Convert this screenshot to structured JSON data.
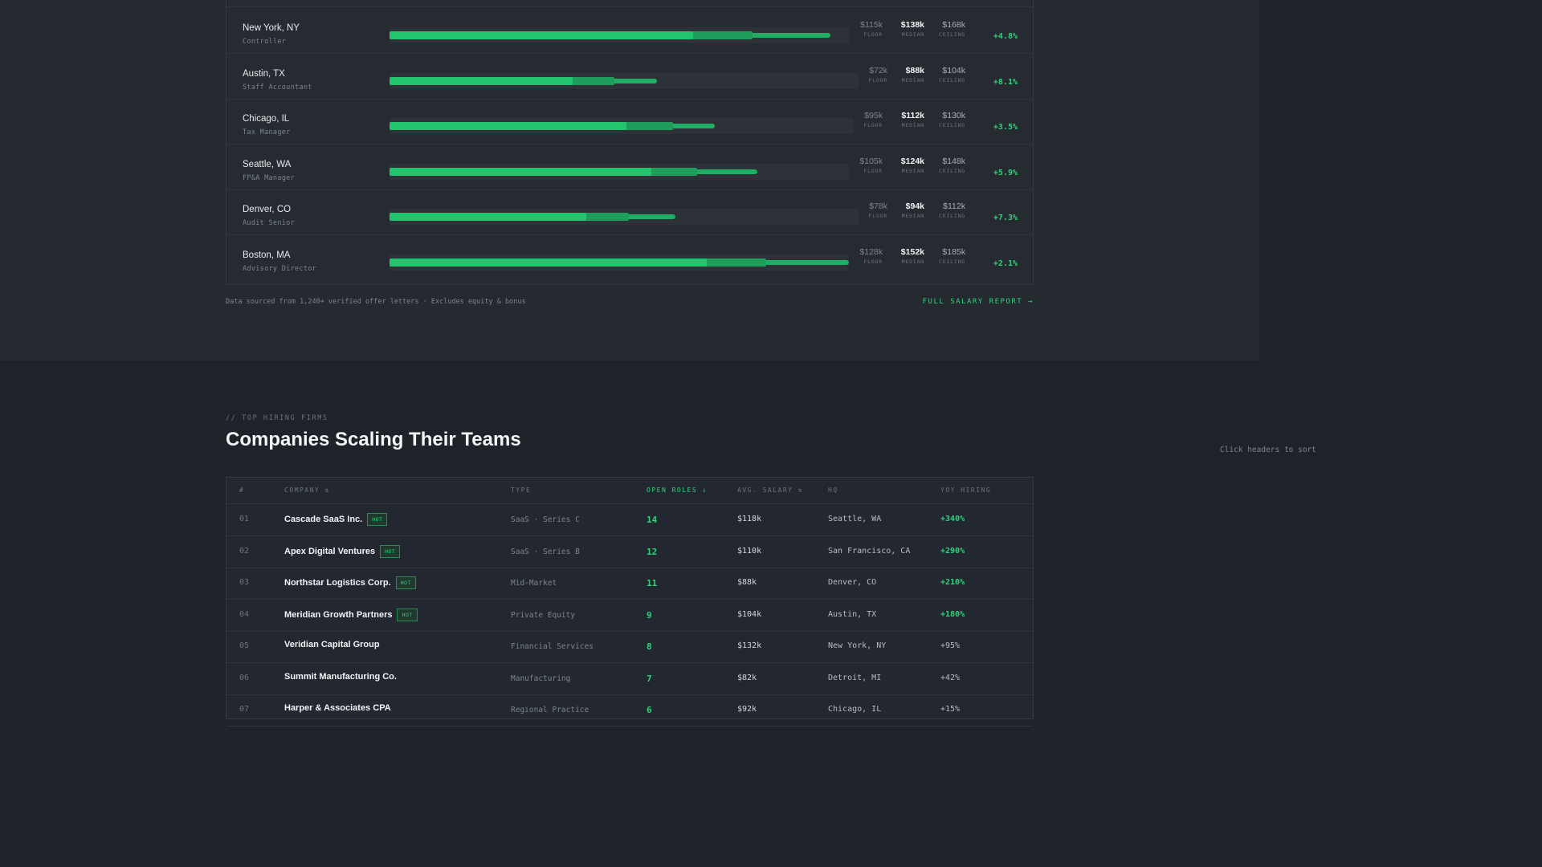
{
  "salaries": [
    {
      "city": "New York, NY",
      "role": "Controller",
      "floor": "$115k",
      "median": "$138k",
      "ceiling": "$168k",
      "change": "+4.8%",
      "floor_pct": 0.66,
      "median_pct": 0.79,
      "ceiling_pct": 0.96
    },
    {
      "city": "Austin, TX",
      "role": "Staff Accountant",
      "floor": "$72k",
      "median": "$88k",
      "ceiling": "$104k",
      "change": "+8.1%",
      "floor_pct": 0.39,
      "median_pct": 0.48,
      "ceiling_pct": 0.57
    },
    {
      "city": "Chicago, IL",
      "role": "Tax Manager",
      "floor": "$95k",
      "median": "$112k",
      "ceiling": "$130k",
      "change": "+3.5%",
      "floor_pct": 0.51,
      "median_pct": 0.61,
      "ceiling_pct": 0.7
    },
    {
      "city": "Seattle, WA",
      "role": "FP&A Manager",
      "floor": "$105k",
      "median": "$124k",
      "ceiling": "$148k",
      "change": "+5.9%",
      "floor_pct": 0.57,
      "median_pct": 0.67,
      "ceiling_pct": 0.8
    },
    {
      "city": "Denver, CO",
      "role": "Audit Senior",
      "floor": "$78k",
      "median": "$94k",
      "ceiling": "$112k",
      "change": "+7.3%",
      "floor_pct": 0.42,
      "median_pct": 0.51,
      "ceiling_pct": 0.61
    },
    {
      "city": "Boston, MA",
      "role": "Advisory Director",
      "floor": "$128k",
      "median": "$152k",
      "ceiling": "$185k",
      "change": "+2.1%",
      "floor_pct": 0.69,
      "median_pct": 0.82,
      "ceiling_pct": 1.0
    }
  ],
  "labels": {
    "floor": "FLOOR",
    "median": "MEDIAN",
    "ceiling": "CEILING"
  },
  "footnote": "Data sourced from 1,240+ verified offer letters · Excludes equity & bonus",
  "report_link": "FULL SALARY REPORT →",
  "firms": {
    "eyebrow": "// TOP HIRING FIRMS",
    "title": "Companies Scaling Their Teams",
    "sort_hint": "Click headers to sort",
    "headers": {
      "rank": "#",
      "company": "COMPANY ⇅",
      "type": "TYPE",
      "roles": "OPEN ROLES ↓",
      "salary": "AVG. SALARY ⇅",
      "hq": "HQ",
      "yoy": "YOY HIRING"
    },
    "hot_label": "HOT",
    "rows": [
      {
        "rank": "01",
        "company": "Cascade SaaS Inc.",
        "hot": true,
        "type": "SaaS · Series C",
        "roles": "14",
        "salary": "$118k",
        "hq": "Seattle, WA",
        "yoy": "+340%",
        "yoy_hi": true
      },
      {
        "rank": "02",
        "company": "Apex Digital Ventures",
        "hot": true,
        "type": "SaaS · Series B",
        "roles": "12",
        "salary": "$110k",
        "hq": "San Francisco, CA",
        "yoy": "+290%",
        "yoy_hi": true
      },
      {
        "rank": "03",
        "company": "Northstar Logistics Corp.",
        "hot": true,
        "type": "Mid-Market",
        "roles": "11",
        "salary": "$88k",
        "hq": "Denver, CO",
        "yoy": "+210%",
        "yoy_hi": true
      },
      {
        "rank": "04",
        "company": "Meridian Growth Partners",
        "hot": true,
        "type": "Private Equity",
        "roles": "9",
        "salary": "$104k",
        "hq": "Austin, TX",
        "yoy": "+180%",
        "yoy_hi": true
      },
      {
        "rank": "05",
        "company": "Veridian Capital Group",
        "hot": false,
        "type": "Financial Services",
        "roles": "8",
        "salary": "$132k",
        "hq": "New York, NY",
        "yoy": "+95%",
        "yoy_hi": false
      },
      {
        "rank": "06",
        "company": "Summit Manufacturing Co.",
        "hot": false,
        "type": "Manufacturing",
        "roles": "7",
        "salary": "$82k",
        "hq": "Detroit, MI",
        "yoy": "+42%",
        "yoy_hi": false
      },
      {
        "rank": "07",
        "company": "Harper & Associates CPA",
        "hot": false,
        "type": "Regional Practice",
        "roles": "6",
        "salary": "$92k",
        "hq": "Chicago, IL",
        "yoy": "+15%",
        "yoy_hi": false
      }
    ]
  }
}
